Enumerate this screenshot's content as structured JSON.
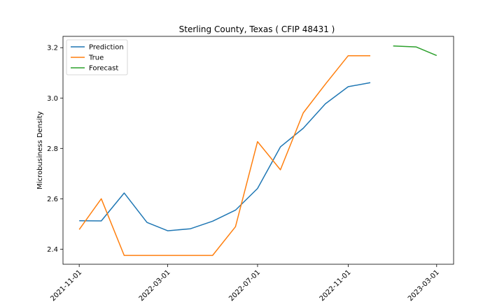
{
  "chart_data": {
    "type": "line",
    "title": "Sterling County, Texas ( CFIP 48431 )",
    "xlabel": "",
    "ylabel": "Microbusiness Density",
    "x_ticks": [
      "2021-11-01",
      "2022-03-01",
      "2022-07-01",
      "2022-11-01",
      "2023-03-01"
    ],
    "y_ticks": [
      "2.4",
      "2.6",
      "2.8",
      "3.0",
      "3.2"
    ],
    "ylim": [
      2.34,
      3.245
    ],
    "xlim": [
      "2021-10-10",
      "2023-03-24"
    ],
    "legend_position": "upper left",
    "series": [
      {
        "name": "Prediction",
        "color": "#1f77b4",
        "points": [
          {
            "x": "2021-11-01",
            "y": 2.513
          },
          {
            "x": "2021-12-01",
            "y": 2.512
          },
          {
            "x": "2022-01-01",
            "y": 2.623
          },
          {
            "x": "2022-02-01",
            "y": 2.506
          },
          {
            "x": "2022-03-01",
            "y": 2.473
          },
          {
            "x": "2022-04-01",
            "y": 2.481
          },
          {
            "x": "2022-05-01",
            "y": 2.511
          },
          {
            "x": "2022-06-01",
            "y": 2.555
          },
          {
            "x": "2022-07-01",
            "y": 2.641
          },
          {
            "x": "2022-08-01",
            "y": 2.806
          },
          {
            "x": "2022-09-01",
            "y": 2.88
          },
          {
            "x": "2022-10-01",
            "y": 2.977
          },
          {
            "x": "2022-11-01",
            "y": 3.045
          },
          {
            "x": "2022-12-01",
            "y": 3.061
          }
        ]
      },
      {
        "name": "True",
        "color": "#ff7f0e",
        "points": [
          {
            "x": "2021-11-01",
            "y": 2.478
          },
          {
            "x": "2021-12-01",
            "y": 2.6
          },
          {
            "x": "2022-01-01",
            "y": 2.375
          },
          {
            "x": "2022-02-01",
            "y": 2.375
          },
          {
            "x": "2022-03-01",
            "y": 2.375
          },
          {
            "x": "2022-04-01",
            "y": 2.375
          },
          {
            "x": "2022-05-01",
            "y": 2.375
          },
          {
            "x": "2022-06-01",
            "y": 2.489
          },
          {
            "x": "2022-07-01",
            "y": 2.827
          },
          {
            "x": "2022-08-01",
            "y": 2.715
          },
          {
            "x": "2022-09-01",
            "y": 2.941
          },
          {
            "x": "2022-10-01",
            "y": 3.055
          },
          {
            "x": "2022-11-01",
            "y": 3.168
          },
          {
            "x": "2022-12-01",
            "y": 3.168
          }
        ]
      },
      {
        "name": "Forecast",
        "color": "#2ca02c",
        "points": [
          {
            "x": "2023-01-01",
            "y": 3.207
          },
          {
            "x": "2023-02-01",
            "y": 3.203
          },
          {
            "x": "2023-03-01",
            "y": 3.169
          }
        ]
      }
    ]
  }
}
